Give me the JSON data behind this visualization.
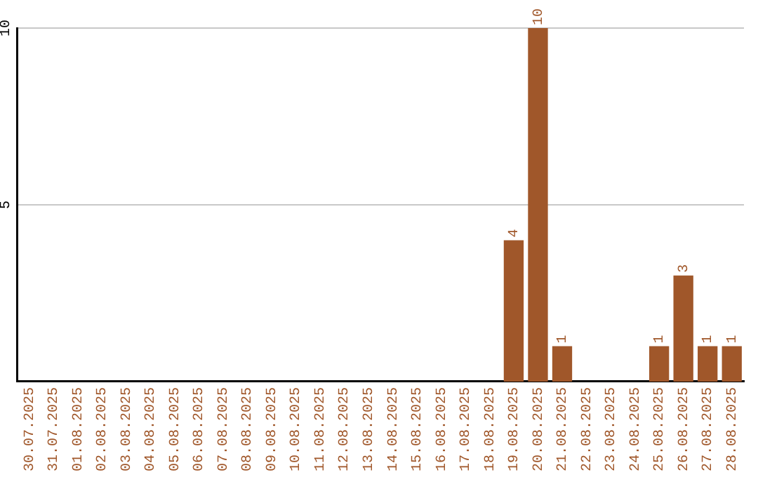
{
  "chart_data": {
    "type": "bar",
    "categories": [
      "30.07.2025",
      "31.07.2025",
      "01.08.2025",
      "02.08.2025",
      "03.08.2025",
      "04.08.2025",
      "05.08.2025",
      "06.08.2025",
      "07.08.2025",
      "08.08.2025",
      "09.08.2025",
      "10.08.2025",
      "11.08.2025",
      "12.08.2025",
      "13.08.2025",
      "14.08.2025",
      "15.08.2025",
      "16.08.2025",
      "17.08.2025",
      "18.08.2025",
      "19.08.2025",
      "20.08.2025",
      "21.08.2025",
      "22.08.2025",
      "23.08.2025",
      "24.08.2025",
      "25.08.2025",
      "26.08.2025",
      "27.08.2025",
      "28.08.2025"
    ],
    "values": [
      0,
      0,
      0,
      0,
      0,
      0,
      0,
      0,
      0,
      0,
      0,
      0,
      0,
      0,
      0,
      0,
      0,
      0,
      0,
      0,
      4,
      10,
      1,
      0,
      0,
      0,
      1,
      3,
      1,
      1
    ],
    "value_labels": [
      null,
      null,
      null,
      null,
      null,
      null,
      null,
      null,
      null,
      null,
      null,
      null,
      null,
      null,
      null,
      null,
      null,
      null,
      null,
      null,
      "4",
      "10",
      "1",
      null,
      null,
      null,
      "1",
      "3",
      "1",
      "1"
    ],
    "color": "#a0572a",
    "ylim": [
      0,
      10
    ],
    "yticks": [
      5,
      10
    ],
    "grid": "y",
    "legend": false
  }
}
